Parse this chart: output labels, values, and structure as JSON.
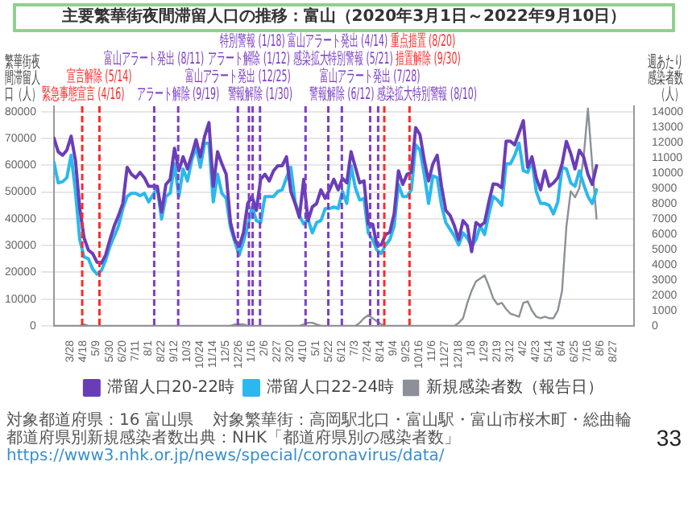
{
  "chart_data": {
    "type": "line",
    "title": "主要繁華街夜間滞留人口の推移：富山（2020年3月1日～2022年9月10日）",
    "ylabel": "繁華街夜間滞留人口（人）",
    "y2label": "週あたり感染者数（人）",
    "x": [
      "2020-03-01",
      "2020-03-08",
      "2020-03-15",
      "2020-03-22",
      "2020-03-29",
      "2020-04-05",
      "2020-04-12",
      "2020-04-19",
      "2020-04-26",
      "2020-05-03",
      "2020-05-10",
      "2020-05-17",
      "2020-05-24",
      "2020-05-31",
      "2020-06-07",
      "2020-06-14",
      "2020-06-21",
      "2020-06-28",
      "2020-07-05",
      "2020-07-12",
      "2020-07-19",
      "2020-07-26",
      "2020-08-02",
      "2020-08-09",
      "2020-08-16",
      "2020-08-23",
      "2020-08-30",
      "2020-09-06",
      "2020-09-13",
      "2020-09-20",
      "2020-09-27",
      "2020-10-04",
      "2020-10-11",
      "2020-10-18",
      "2020-10-25",
      "2020-11-01",
      "2020-11-08",
      "2020-11-15",
      "2020-11-22",
      "2020-11-29",
      "2020-12-06",
      "2020-12-13",
      "2020-12-20",
      "2020-12-27",
      "2021-01-03",
      "2021-01-10",
      "2021-01-17",
      "2021-01-24",
      "2021-01-31",
      "2021-02-07",
      "2021-02-14",
      "2021-02-21",
      "2021-02-28",
      "2021-03-07",
      "2021-03-14",
      "2021-03-21",
      "2021-03-28",
      "2021-04-04",
      "2021-04-11",
      "2021-04-18",
      "2021-04-25",
      "2021-05-02",
      "2021-05-09",
      "2021-05-16",
      "2021-05-23",
      "2021-05-30",
      "2021-06-06",
      "2021-06-13",
      "2021-06-20",
      "2021-06-27",
      "2021-07-04",
      "2021-07-11",
      "2021-07-18",
      "2021-07-25",
      "2021-08-01",
      "2021-08-08",
      "2021-08-15",
      "2021-08-22",
      "2021-08-29",
      "2021-09-05",
      "2021-09-12",
      "2021-09-19",
      "2021-09-26",
      "2021-10-03",
      "2021-10-10",
      "2021-10-17",
      "2021-10-24",
      "2021-10-31",
      "2021-11-07",
      "2021-11-14",
      "2021-11-21",
      "2021-11-28",
      "2021-12-05",
      "2021-12-12",
      "2021-12-19",
      "2021-12-26",
      "2022-01-02",
      "2022-01-09",
      "2022-01-16",
      "2022-01-23",
      "2022-01-30",
      "2022-02-06",
      "2022-02-13",
      "2022-02-20",
      "2022-02-27",
      "2022-03-06",
      "2022-03-13",
      "2022-03-20",
      "2022-03-27",
      "2022-04-03",
      "2022-04-10",
      "2022-04-17",
      "2022-04-24",
      "2022-05-01",
      "2022-05-08",
      "2022-05-15",
      "2022-05-22",
      "2022-05-29",
      "2022-06-05",
      "2022-06-12",
      "2022-06-19",
      "2022-06-26",
      "2022-07-03",
      "2022-07-10",
      "2022-07-17",
      "2022-07-24",
      "2022-07-31"
    ],
    "xlim": [
      "2020-03-01",
      "2022-09-30"
    ],
    "xticks": [
      {
        "value": "2020-03-28",
        "label": "3/28"
      },
      {
        "value": "2020-04-18",
        "label": "4/18"
      },
      {
        "value": "2020-05-09",
        "label": "5/9"
      },
      {
        "value": "2020-05-30",
        "label": "5/30"
      },
      {
        "value": "2020-06-20",
        "label": "6/20"
      },
      {
        "value": "2020-07-11",
        "label": "7/11"
      },
      {
        "value": "2020-08-01",
        "label": "8/1"
      },
      {
        "value": "2020-08-22",
        "label": "8/22"
      },
      {
        "value": "2020-09-12",
        "label": "9/12"
      },
      {
        "value": "2020-10-03",
        "label": "10/3"
      },
      {
        "value": "2020-10-24",
        "label": "10/24"
      },
      {
        "value": "2020-11-14",
        "label": "11/14"
      },
      {
        "value": "2020-12-05",
        "label": "12/5"
      },
      {
        "value": "2020-12-26",
        "label": "12/26"
      },
      {
        "value": "2021-01-16",
        "label": "1/16"
      },
      {
        "value": "2021-02-06",
        "label": "2/6"
      },
      {
        "value": "2021-02-27",
        "label": "2/27"
      },
      {
        "value": "2021-03-20",
        "label": "3/20"
      },
      {
        "value": "2021-04-10",
        "label": "4/10"
      },
      {
        "value": "2021-05-01",
        "label": "5/1"
      },
      {
        "value": "2021-05-22",
        "label": "5/22"
      },
      {
        "value": "2021-06-12",
        "label": "6/12"
      },
      {
        "value": "2021-07-03",
        "label": "7/3"
      },
      {
        "value": "2021-07-24",
        "label": "7/24"
      },
      {
        "value": "2021-08-14",
        "label": "8/14"
      },
      {
        "value": "2021-09-04",
        "label": "9/4"
      },
      {
        "value": "2021-09-25",
        "label": "9/25"
      },
      {
        "value": "2021-10-16",
        "label": "10/16"
      },
      {
        "value": "2021-11-06",
        "label": "11/6"
      },
      {
        "value": "2021-11-27",
        "label": "11/27"
      },
      {
        "value": "2021-12-18",
        "label": "12/18"
      },
      {
        "value": "2022-01-08",
        "label": "1/8"
      },
      {
        "value": "2022-01-29",
        "label": "1/29"
      },
      {
        "value": "2022-02-19",
        "label": "2/19"
      },
      {
        "value": "2022-03-12",
        "label": "3/12"
      },
      {
        "value": "2022-04-02",
        "label": "4/2"
      },
      {
        "value": "2022-04-23",
        "label": "4/23"
      },
      {
        "value": "2022-05-14",
        "label": "5/14"
      },
      {
        "value": "2022-06-04",
        "label": "6/4"
      },
      {
        "value": "2022-06-25",
        "label": "6/25"
      },
      {
        "value": "2022-07-16",
        "label": "7/16"
      },
      {
        "value": "2022-08-06",
        "label": "8/6"
      },
      {
        "value": "2022-08-27",
        "label": "8/27"
      }
    ],
    "ylim": [
      0,
      82000
    ],
    "yticks": [
      0,
      10000,
      20000,
      30000,
      40000,
      50000,
      60000,
      70000,
      80000
    ],
    "y2lim": [
      0,
      14350
    ],
    "y2ticks": [
      0,
      1000,
      2000,
      3000,
      4000,
      5000,
      6000,
      7000,
      8000,
      9000,
      10000,
      11000,
      12000,
      13000,
      14000
    ],
    "series": [
      {
        "name": "滞留人口20-22時",
        "color": "#6a3db8",
        "values": [
          70100,
          65000,
          63700,
          65600,
          70800,
          61800,
          43800,
          32800,
          28300,
          27000,
          23800,
          23400,
          26400,
          32200,
          37300,
          41200,
          45700,
          59200,
          56600,
          55300,
          57300,
          55300,
          52100,
          52100,
          52100,
          42500,
          52800,
          54700,
          66300,
          57900,
          63100,
          58600,
          63700,
          69500,
          63100,
          70800,
          75900,
          52100,
          65000,
          60500,
          56600,
          38600,
          32200,
          29600,
          34700,
          45700,
          48300,
          43100,
          54700,
          56600,
          54100,
          57900,
          59800,
          59800,
          63100,
          50200,
          45700,
          40500,
          54700,
          39300,
          44400,
          45700,
          50800,
          47600,
          50800,
          54700,
          50800,
          55100,
          53400,
          65000,
          59200,
          53400,
          54100,
          38000,
          38000,
          30200,
          30200,
          34100,
          35000,
          41800,
          57900,
          52800,
          56600,
          57300,
          74000,
          71400,
          61800,
          54100,
          60500,
          63700,
          52100,
          43100,
          41200,
          37300,
          32200,
          39300,
          37300,
          27700,
          38600,
          37300,
          38600,
          46300,
          53000,
          52800,
          51500,
          68900,
          68900,
          67600,
          72100,
          76600,
          59200,
          63100,
          55300,
          50800,
          57900,
          52100,
          53400,
          55300,
          60500,
          68900,
          64400,
          58600,
          65600,
          63100,
          56600,
          52800,
          59800
        ]
      },
      {
        "name": "滞留人口22-24時",
        "color": "#2ab8ee",
        "values": [
          61100,
          53400,
          53800,
          55300,
          63700,
          50200,
          32200,
          25700,
          25100,
          21200,
          19300,
          20600,
          24500,
          29600,
          33500,
          37300,
          43800,
          48300,
          49500,
          49500,
          48600,
          49500,
          46300,
          48900,
          51500,
          39900,
          48300,
          49500,
          60500,
          48300,
          58600,
          54100,
          61800,
          66900,
          59200,
          68200,
          68200,
          46300,
          56600,
          49500,
          47600,
          36700,
          31500,
          26400,
          31500,
          37300,
          44400,
          39300,
          38600,
          48300,
          48300,
          48300,
          50200,
          50800,
          55300,
          59200,
          46300,
          41200,
          38000,
          39900,
          34700,
          38600,
          39300,
          43800,
          43800,
          44400,
          43800,
          50200,
          45700,
          59800,
          51500,
          47000,
          47600,
          34700,
          32200,
          28300,
          27000,
          30200,
          32200,
          37300,
          52800,
          48300,
          48300,
          50800,
          67600,
          65600,
          56600,
          45700,
          56000,
          55300,
          45000,
          38600,
          36000,
          33500,
          30200,
          34700,
          32800,
          29600,
          32200,
          37300,
          34100,
          41800,
          48300,
          47000,
          45000,
          60500,
          60500,
          63700,
          68200,
          57900,
          57300,
          61800,
          50200,
          45700,
          45700,
          45000,
          41800,
          46300,
          59200,
          58600,
          53400,
          52100,
          57900,
          52800,
          48300,
          45700,
          50800
        ]
      },
      {
        "name": "新規感染者数（報告日）",
        "color": "#8c9099",
        "axis": "y2",
        "values": [
          0,
          0,
          0,
          0,
          0,
          0,
          0,
          100,
          0,
          0,
          0,
          0,
          0,
          0,
          0,
          0,
          0,
          0,
          0,
          0,
          0,
          0,
          0,
          0,
          0,
          0,
          0,
          0,
          0,
          0,
          0,
          0,
          0,
          0,
          0,
          0,
          0,
          0,
          0,
          0,
          0,
          0,
          100,
          100,
          100,
          0,
          0,
          0,
          0,
          0,
          0,
          0,
          0,
          0,
          0,
          0,
          0,
          0,
          100,
          200,
          200,
          100,
          0,
          0,
          0,
          0,
          0,
          0,
          0,
          0,
          0,
          200,
          500,
          700,
          500,
          300,
          100,
          0,
          0,
          0,
          0,
          0,
          0,
          0,
          0,
          0,
          0,
          0,
          0,
          0,
          0,
          0,
          0,
          0,
          200,
          500,
          1500,
          2300,
          2900,
          3100,
          3300,
          2600,
          1800,
          1400,
          1500,
          1100,
          800,
          700,
          600,
          1500,
          1600,
          1000,
          600,
          500,
          600,
          500,
          500,
          1000,
          2300,
          6500,
          8800,
          8400,
          9000,
          11000,
          14200,
          10500,
          7000
        ]
      }
    ],
    "ref_lines": [
      {
        "axis": "x",
        "value": "2020-04-16",
        "label": "緊急事態宣言 (4/16)",
        "color": "#ff2a2a",
        "line_style": "dashed"
      },
      {
        "axis": "x",
        "value": "2020-05-14",
        "label": "宣言解除 (5/14)",
        "color": "#ff2a2a",
        "line_style": "dashed"
      },
      {
        "axis": "x",
        "value": "2020-08-11",
        "label": "富山アラート発出 (8/11)",
        "color": "#7b3fc8",
        "line_style": "dashed"
      },
      {
        "axis": "x",
        "value": "2020-09-19",
        "label": "アラート解除 (9/19)",
        "color": "#7b3fc8",
        "line_style": "dashed"
      },
      {
        "axis": "x",
        "value": "2020-12-25",
        "label": "富山アラート発出 (12/25)",
        "color": "#7b3fc8",
        "line_style": "dashed"
      },
      {
        "axis": "x",
        "value": "2021-01-12",
        "label": "アラート解除 (1/12)",
        "color": "#7b3fc8",
        "line_style": "dashed"
      },
      {
        "axis": "x",
        "value": "2021-01-18",
        "label": "特別警報 (1/18)",
        "color": "#7b3fc8",
        "line_style": "dashed"
      },
      {
        "axis": "x",
        "value": "2021-01-30",
        "label": "警報解除 (1/30)",
        "color": "#7b3fc8",
        "line_style": "dashed"
      },
      {
        "axis": "x",
        "value": "2021-04-14",
        "label": "富山アラート発出 (4/14)",
        "color": "#7b3fc8",
        "line_style": "dashed"
      },
      {
        "axis": "x",
        "value": "2021-05-21",
        "label": "感染拡大特別警報 (5/21)",
        "color": "#7b3fc8",
        "line_style": "dashed"
      },
      {
        "axis": "x",
        "value": "2021-06-12",
        "label": "警報解除 (6/12)",
        "color": "#7b3fc8",
        "line_style": "dashed"
      },
      {
        "axis": "x",
        "value": "2021-07-28",
        "label": "富山アラート発出 (7/28)",
        "color": "#7b3fc8",
        "line_style": "dashed"
      },
      {
        "axis": "x",
        "value": "2021-08-10",
        "label": "感染拡大特別警報 (8/10)",
        "color": "#7b3fc8",
        "line_style": "dashed"
      },
      {
        "axis": "x",
        "value": "2021-08-20",
        "label": "重点措置 (8/20)",
        "color": "#ff2a2a",
        "line_style": "dashed"
      },
      {
        "axis": "x",
        "value": "2021-09-30",
        "label": "措置解除 (9/30)",
        "color": "#ff2a2a",
        "line_style": "dashed"
      }
    ],
    "annotations": [
      "対象都道府県：16 富山県",
      "対象繁華街：高岡駅北口・富山駅・富山市桜木町・総曲輪",
      "都道府県別新規感染者数出典：NHK「都道府県別の感染者数」",
      "https://www3.nhk.or.jp/news/special/coronavirus/data/",
      "33"
    ],
    "grid": "y",
    "legend": "bottom"
  }
}
